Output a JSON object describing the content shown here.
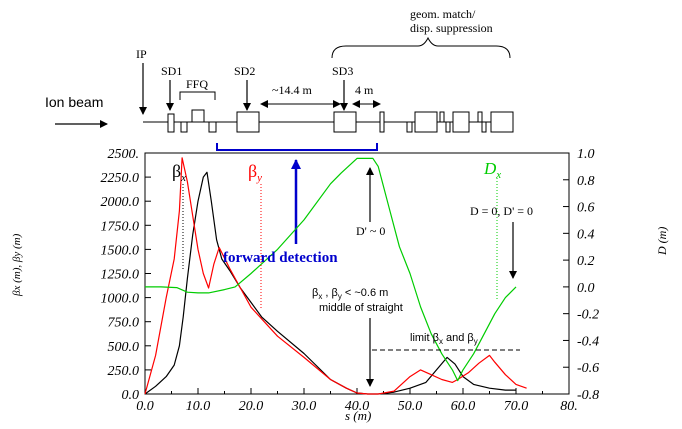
{
  "lattice": {
    "beam_label": "Ion beam",
    "labels": {
      "ip": "IP",
      "sd1": "SD1",
      "ffq": "FFQ",
      "sd2": "SD2",
      "sd3": "SD3",
      "span_14": "~14.4 m",
      "span_4": "4 m",
      "geom_line1": "geom. match/",
      "geom_line2": "disp. suppression"
    }
  },
  "annotations": {
    "forward_detection": "forward detection",
    "dprime": "D' ~ 0",
    "d_zero": "D = 0, D' = 0",
    "beta_small": "β",
    "beta_small_sub_x": "x",
    "beta_small_mid": " , β",
    "beta_small_sub_y": "y",
    "beta_small_tail": " < ~0.6 m",
    "middle_straight": "middle of straight",
    "limit": "limit β",
    "limit_sub_x": "x",
    "limit_and": " and β",
    "limit_sub_y": "y"
  },
  "colors": {
    "beta_x": "#000000",
    "beta_y": "#ff0000",
    "dispersion": "#00cc00",
    "forward_detection": "#0000cc"
  },
  "chart_data": {
    "type": "line",
    "xlabel": "s (m)",
    "ylabel_left": "βx (m), βy (m)",
    "ylabel_right": "D (m)",
    "xlim": [
      0,
      80
    ],
    "ylim_left": [
      0,
      2500
    ],
    "ylim_right": [
      -0.8,
      1.0
    ],
    "x_ticks": [
      "0.0",
      "10.0",
      "20.0",
      "30.0",
      "40.0",
      "50.0",
      "60.0",
      "70.0",
      "80."
    ],
    "y_ticks_left": [
      "0.0",
      "250.0",
      "500.0",
      "750.0",
      "1000.0",
      "1250.0",
      "1500.0",
      "1750.0",
      "2000.0",
      "2250.0",
      "2500."
    ],
    "y_ticks_right": [
      "-0.8",
      "-0.6",
      "-0.4",
      "-0.2",
      "0.0",
      "0.2",
      "0.4",
      "0.6",
      "0.8",
      "1.0"
    ],
    "legend": {
      "beta_x": "β",
      "beta_x_sub": "x",
      "beta_y": "β",
      "beta_y_sub": "y",
      "dx": "D",
      "dx_sub": "x"
    },
    "series": [
      {
        "key": "beta_x",
        "points": [
          [
            0,
            0
          ],
          [
            2,
            80
          ],
          [
            4,
            180
          ],
          [
            5.5,
            300
          ],
          [
            6.5,
            500
          ],
          [
            7.2,
            800
          ],
          [
            8,
            1200
          ],
          [
            9,
            1650
          ],
          [
            10,
            2000
          ],
          [
            11,
            2250
          ],
          [
            11.7,
            2300
          ],
          [
            12.5,
            2000
          ],
          [
            13.5,
            1600
          ],
          [
            14.5,
            1400
          ],
          [
            16,
            1280
          ],
          [
            18,
            1100
          ],
          [
            20,
            950
          ],
          [
            22,
            800
          ],
          [
            25,
            650
          ],
          [
            30,
            420
          ],
          [
            35,
            150
          ],
          [
            38,
            60
          ],
          [
            40,
            10
          ],
          [
            42,
            0
          ],
          [
            44,
            0
          ],
          [
            47,
            20
          ],
          [
            50,
            60
          ],
          [
            53,
            120
          ],
          [
            55,
            250
          ],
          [
            57,
            380
          ],
          [
            58.5,
            310
          ],
          [
            60,
            180
          ],
          [
            62,
            100
          ],
          [
            65,
            60
          ],
          [
            68,
            40
          ],
          [
            70,
            40
          ]
        ]
      },
      {
        "key": "beta_y",
        "points": [
          [
            0,
            0
          ],
          [
            2,
            400
          ],
          [
            4,
            1000
          ],
          [
            5.5,
            1400
          ],
          [
            6.5,
            1900
          ],
          [
            7,
            2450
          ],
          [
            8,
            2200
          ],
          [
            9,
            1850
          ],
          [
            10,
            1500
          ],
          [
            11,
            1250
          ],
          [
            12,
            1100
          ],
          [
            13,
            1350
          ],
          [
            14,
            1520
          ],
          [
            16,
            1300
          ],
          [
            18,
            1100
          ],
          [
            20,
            900
          ],
          [
            22,
            780
          ],
          [
            25,
            600
          ],
          [
            30,
            380
          ],
          [
            35,
            150
          ],
          [
            38,
            60
          ],
          [
            40,
            10
          ],
          [
            42,
            0
          ],
          [
            44,
            0
          ],
          [
            47,
            30
          ],
          [
            50,
            180
          ],
          [
            52,
            250
          ],
          [
            54,
            200
          ],
          [
            56,
            150
          ],
          [
            58,
            120
          ],
          [
            59,
            150
          ],
          [
            61,
            220
          ],
          [
            63,
            320
          ],
          [
            65,
            400
          ],
          [
            66,
            330
          ],
          [
            68,
            200
          ],
          [
            70,
            100
          ],
          [
            72,
            60
          ]
        ]
      },
      {
        "key": "dispersion",
        "points": [
          [
            0,
            0.0
          ],
          [
            3,
            0.0
          ],
          [
            6,
            -0.005
          ],
          [
            8,
            -0.04
          ],
          [
            10,
            -0.045
          ],
          [
            12,
            -0.045
          ],
          [
            15,
            -0.02
          ],
          [
            17,
            0.0
          ],
          [
            20,
            0.1
          ],
          [
            25,
            0.28
          ],
          [
            30,
            0.5
          ],
          [
            35,
            0.77
          ],
          [
            37,
            0.85
          ],
          [
            40,
            0.96
          ],
          [
            42,
            0.96
          ],
          [
            43,
            0.96
          ],
          [
            44,
            0.9
          ],
          [
            46,
            0.6
          ],
          [
            48,
            0.3
          ],
          [
            50,
            0.1
          ],
          [
            52,
            -0.15
          ],
          [
            54,
            -0.35
          ],
          [
            56,
            -0.5
          ],
          [
            58,
            -0.62
          ],
          [
            59,
            -0.7
          ],
          [
            60,
            -0.62
          ],
          [
            62,
            -0.5
          ],
          [
            64,
            -0.35
          ],
          [
            66,
            -0.2
          ],
          [
            68,
            -0.08
          ],
          [
            70,
            0.0
          ]
        ]
      }
    ]
  }
}
